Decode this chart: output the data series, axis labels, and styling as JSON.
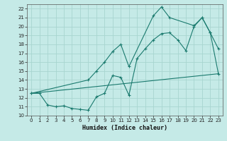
{
  "xlabel": "Humidex (Indice chaleur)",
  "bg_color": "#c5eae7",
  "grid_color": "#a8d5d0",
  "line_color": "#1a7a6e",
  "xlim": [
    -0.5,
    23.5
  ],
  "ylim": [
    10,
    22.5
  ],
  "x_ticks": [
    0,
    1,
    2,
    3,
    4,
    5,
    6,
    7,
    8,
    9,
    10,
    11,
    12,
    13,
    14,
    15,
    16,
    17,
    18,
    19,
    20,
    21,
    22,
    23
  ],
  "y_ticks": [
    10,
    11,
    12,
    13,
    14,
    15,
    16,
    17,
    18,
    19,
    20,
    21,
    22
  ],
  "curve1_x": [
    0,
    1,
    2,
    3,
    4,
    5,
    6,
    7,
    8,
    9,
    10,
    11,
    12,
    13,
    14,
    15,
    16,
    17,
    18,
    19,
    20,
    21,
    22,
    23
  ],
  "curve1_y": [
    12.5,
    12.5,
    11.2,
    11.0,
    11.1,
    10.8,
    10.7,
    10.6,
    12.1,
    12.5,
    14.5,
    14.3,
    12.3,
    16.4,
    17.5,
    18.5,
    19.2,
    19.3,
    18.5,
    17.3,
    20.0,
    21.0,
    19.3,
    17.5
  ],
  "curve2_x": [
    0,
    7,
    8,
    9,
    10,
    11,
    12,
    15,
    16,
    17,
    20,
    21,
    22,
    23
  ],
  "curve2_y": [
    12.5,
    14.0,
    15.0,
    16.0,
    17.2,
    18.0,
    15.5,
    21.2,
    22.2,
    21.0,
    20.1,
    21.0,
    19.3,
    14.7
  ],
  "curve3_x": [
    0,
    23
  ],
  "curve3_y": [
    12.5,
    14.7
  ]
}
